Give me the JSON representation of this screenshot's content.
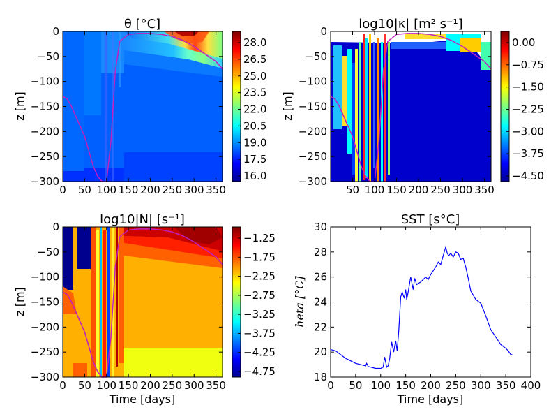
{
  "figure": {
    "panels": [
      {
        "id": "theta",
        "title": "θ [°C]",
        "ylabel": "z [m]",
        "xlabel": "",
        "xticks": [
          "0",
          "50",
          "100",
          "150",
          "200",
          "250",
          "300",
          "350"
        ],
        "yticks": [
          "0",
          "−50",
          "−100",
          "−150",
          "−200",
          "−250",
          "−300"
        ],
        "colorbar_ticks": [
          "28.0",
          "26.5",
          "25.0",
          "23.5",
          "22.0",
          "20.5",
          "19.0",
          "17.5",
          "16.0"
        ]
      },
      {
        "id": "kappa",
        "title": "log10|κ| [m² s⁻¹]",
        "ylabel": "z [m]",
        "xlabel": "",
        "xticks": [
          "50",
          "100",
          "150",
          "200",
          "250",
          "300",
          "350"
        ],
        "yticks": [
          "0",
          "−50",
          "−100",
          "−150",
          "−200",
          "−250",
          "−300"
        ],
        "colorbar_ticks": [
          "0.00",
          "−0.75",
          "−1.50",
          "−2.25",
          "−3.00",
          "−3.75",
          "−4.50"
        ]
      },
      {
        "id": "nfreq",
        "title": "log10|N| [s⁻¹]",
        "ylabel": "z [m]",
        "xlabel": "Time [days]",
        "xticks": [
          "0",
          "50",
          "100",
          "150",
          "200",
          "250",
          "300",
          "350"
        ],
        "yticks": [
          "0",
          "−50",
          "−100",
          "−150",
          "−200",
          "−250",
          "−300"
        ],
        "colorbar_ticks": [
          "−1.25",
          "−1.75",
          "−2.25",
          "−2.75",
          "−3.25",
          "−3.75",
          "−4.25",
          "−4.75"
        ]
      },
      {
        "id": "sst",
        "title": "SST [s°C]",
        "ylabel": "heta [°C]",
        "xlabel": "Time [days]",
        "xticks": [
          "0",
          "50",
          "100",
          "150",
          "200",
          "250",
          "300",
          "350",
          "400"
        ],
        "yticks": [
          "18",
          "20",
          "22",
          "24",
          "26",
          "28",
          "30"
        ]
      }
    ]
  },
  "colors": {
    "line": "#0000ff",
    "contour": "#c020c0"
  },
  "chart_data": [
    {
      "type": "heatmap",
      "title": "θ [°C]",
      "ylabel": "z [m]",
      "xlim": [
        0,
        365
      ],
      "ylim": [
        -300,
        0
      ],
      "colorbar_range": [
        16.0,
        29.0
      ],
      "colorbar_ticks": [
        28.0,
        26.5,
        25.0,
        23.5,
        22.0,
        20.5,
        19.0,
        17.5,
        16.0
      ],
      "mixed_layer_depth": {
        "x": [
          0,
          10,
          20,
          30,
          40,
          50,
          60,
          70,
          80,
          90,
          100,
          110,
          120,
          130,
          150,
          175,
          200,
          225,
          250,
          275,
          300,
          325,
          350,
          365
        ],
        "y": [
          -130,
          -135,
          -150,
          -170,
          -190,
          -210,
          -240,
          -270,
          -290,
          -300,
          -300,
          -220,
          -80,
          -20,
          -6,
          -4,
          -4,
          -6,
          -10,
          -18,
          -30,
          -45,
          -60,
          -75
        ]
      }
    },
    {
      "type": "heatmap",
      "title": "log10|κ| [m² s⁻¹]",
      "ylabel": "z [m]",
      "xlim": [
        0,
        365
      ],
      "ylim": [
        -300,
        0
      ],
      "colorbar_range": [
        -5.0,
        0.0
      ],
      "colorbar_ticks": [
        0.0,
        -0.75,
        -1.5,
        -2.25,
        -3.0,
        -3.75,
        -4.5
      ]
    },
    {
      "type": "heatmap",
      "title": "log10|N| [s⁻¹]",
      "xlabel": "Time [days]",
      "ylabel": "z [m]",
      "xlim": [
        0,
        365
      ],
      "ylim": [
        -300,
        0
      ],
      "colorbar_range": [
        -5.0,
        -1.0
      ],
      "colorbar_ticks": [
        -1.25,
        -1.75,
        -2.25,
        -2.75,
        -3.25,
        -3.75,
        -4.25,
        -4.75
      ]
    },
    {
      "type": "line",
      "title": "SST [s°C]",
      "xlabel": "Time [days]",
      "ylabel": "heta [°C]",
      "xlim": [
        0,
        400
      ],
      "ylim": [
        18,
        30
      ],
      "series": [
        {
          "x": [
            0,
            10,
            20,
            30,
            40,
            50,
            60,
            70,
            72,
            75,
            80,
            90,
            100,
            105,
            108,
            112,
            115,
            118,
            122,
            126,
            130,
            133,
            136,
            140,
            143,
            147,
            150,
            152,
            155,
            160,
            165,
            168,
            172,
            176,
            180,
            185,
            190,
            195,
            200,
            205,
            210,
            215,
            220,
            225,
            230,
            233,
            236,
            240,
            245,
            250,
            255,
            260,
            265,
            270,
            275,
            280,
            290,
            300,
            310,
            320,
            330,
            340,
            350,
            355,
            360,
            363
          ],
          "y": [
            20.2,
            20.1,
            19.8,
            19.5,
            19.3,
            19.1,
            19.0,
            18.9,
            19.1,
            18.85,
            18.8,
            18.7,
            18.7,
            18.8,
            19.6,
            18.8,
            18.9,
            19.5,
            20.8,
            20.0,
            20.9,
            20.1,
            21.6,
            24.4,
            24.8,
            24.3,
            25.0,
            24.2,
            24.8,
            26.0,
            25.0,
            25.9,
            25.4,
            25.5,
            25.6,
            25.8,
            26.0,
            25.8,
            26.2,
            26.5,
            26.8,
            27.2,
            27.0,
            27.7,
            28.4,
            27.9,
            27.7,
            27.9,
            27.6,
            28.0,
            27.9,
            27.4,
            27.5,
            26.8,
            25.9,
            24.9,
            24.2,
            23.9,
            22.9,
            21.8,
            21.2,
            20.6,
            20.3,
            20.1,
            19.8,
            19.8
          ]
        }
      ]
    }
  ]
}
